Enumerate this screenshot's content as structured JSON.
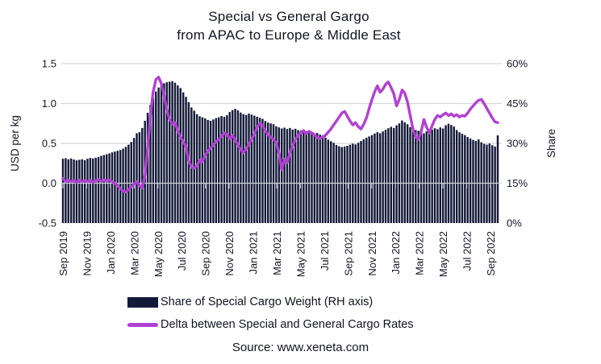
{
  "title": {
    "line1": "Special vs General Gargo",
    "line2": "from APAC to Europe & Middle East"
  },
  "axes": {
    "left": {
      "label": "USD per kg",
      "ticks": [
        "1.5",
        "1.0",
        "0.5",
        "0.0",
        "-0.5"
      ],
      "tick_values": [
        1.5,
        1.0,
        0.5,
        0.0,
        -0.5
      ]
    },
    "right": {
      "label": "Share",
      "ticks": [
        "60%",
        "45%",
        "30%",
        "15%",
        "0%"
      ],
      "tick_values": [
        60,
        45,
        30,
        15,
        0
      ]
    },
    "x": {
      "tick_labels": [
        "Sep 2019",
        "Nov 2019",
        "Jan 2020",
        "Mar 2020",
        "May 2020",
        "Jul 2020",
        "Sep 2020",
        "Nov 2020",
        "Jan 2021",
        "Mar 2021",
        "May 2021",
        "Jul 2021",
        "Sep 2021",
        "Nov 2021",
        "Jan 2022",
        "Mar 2022",
        "May 2022",
        "Jul 2022",
        "Sep 2022"
      ]
    }
  },
  "legend": [
    {
      "label": "Share of Special Cargo Weight (RH axis)",
      "type": "bar",
      "color": "#131a39"
    },
    {
      "label": "Delta between Special and General Cargo Rates",
      "type": "line",
      "color": "#b240d4"
    }
  ],
  "source": "Source: www.xeneta.com",
  "colors": {
    "bar": "#131a39",
    "line": "#b240d4",
    "grid": "#d8d8d8",
    "zero_line": "#d0d3da",
    "text": "#14162a"
  },
  "chart_data": {
    "type": "bar+line",
    "title": "Special vs General Gargo from APAC to Europe & Middle East",
    "x_unit": "weekly observations, Sep 2019 - Sep 2022",
    "x_tick_labels": [
      "Sep 2019",
      "Nov 2019",
      "Jan 2020",
      "Mar 2020",
      "May 2020",
      "Jul 2020",
      "Sep 2020",
      "Nov 2020",
      "Jan 2021",
      "Mar 2021",
      "May 2021",
      "Jul 2021",
      "Sep 2021",
      "Nov 2021",
      "Jan 2022",
      "Mar 2022",
      "May 2022",
      "Jul 2022",
      "Sep 2022"
    ],
    "grid": true,
    "legend_position": "bottom",
    "series": [
      {
        "name": "Share of Special Cargo Weight (RH axis)",
        "type": "bar",
        "axis": "right",
        "unit": "%",
        "ylim": [
          0,
          60
        ],
        "color": "#131a39",
        "values": [
          24.2,
          24.4,
          24.0,
          24.3,
          23.9,
          23.6,
          23.8,
          24.0,
          23.7,
          24.2,
          24.5,
          24.3,
          24.6,
          24.9,
          25.3,
          25.6,
          25.9,
          26.2,
          26.6,
          26.9,
          27.2,
          27.5,
          28.0,
          28.7,
          29.5,
          30.5,
          32.0,
          33.8,
          34.2,
          35.8,
          38.5,
          41.5,
          44.5,
          47.0,
          49.5,
          51.0,
          52.0,
          52.6,
          53.0,
          53.2,
          53.4,
          52.8,
          51.8,
          50.8,
          49.2,
          47.5,
          45.5,
          43.5,
          42.3,
          41.0,
          40.2,
          39.8,
          39.4,
          38.8,
          38.5,
          39.0,
          39.5,
          39.8,
          40.3,
          40.0,
          40.6,
          41.8,
          42.5,
          43.0,
          42.4,
          41.6,
          41.0,
          40.7,
          41.2,
          40.8,
          40.4,
          40.0,
          39.6,
          39.2,
          38.4,
          37.8,
          37.5,
          37.2,
          36.4,
          36.0,
          35.6,
          35.9,
          35.4,
          35.8,
          35.2,
          35.5,
          35.0,
          34.8,
          34.4,
          34.6,
          34.2,
          34.0,
          33.6,
          33.9,
          33.3,
          33.0,
          32.2,
          31.4,
          30.8,
          30.2,
          29.4,
          28.9,
          28.6,
          28.8,
          29.1,
          29.5,
          29.9,
          29.6,
          30.2,
          30.9,
          31.5,
          32.1,
          32.6,
          33.1,
          33.7,
          34.2,
          33.8,
          34.5,
          35.1,
          35.7,
          36.2,
          35.8,
          36.8,
          37.5,
          38.6,
          37.9,
          37.2,
          36.1,
          35.4,
          35.0,
          34.7,
          34.3,
          33.8,
          34.5,
          34.0,
          35.2,
          35.7,
          35.3,
          36.0,
          35.6,
          36.8,
          37.4,
          36.9,
          36.3,
          35.0,
          34.2,
          33.6,
          33.1,
          32.4,
          31.8,
          31.3,
          30.9,
          31.5,
          30.4,
          29.8,
          29.5,
          29.9,
          29.3,
          28.8,
          33.0
        ]
      },
      {
        "name": "Delta between Special and General Cargo Rates",
        "type": "line",
        "axis": "left",
        "unit": "USD per kg",
        "ylim": [
          -0.5,
          1.5
        ],
        "color": "#b240d4",
        "values": [
          0.06,
          0.02,
          0.04,
          0.02,
          0.03,
          0.01,
          0.04,
          0.02,
          0.03,
          0.02,
          0.04,
          0.01,
          0.03,
          0.05,
          0.02,
          0.04,
          0.03,
          0.04,
          0.02,
          0.0,
          -0.03,
          -0.07,
          -0.1,
          -0.11,
          -0.08,
          -0.05,
          -0.01,
          0.02,
          -0.03,
          -0.06,
          0.1,
          0.45,
          0.85,
          1.15,
          1.3,
          1.33,
          1.25,
          1.1,
          0.92,
          0.8,
          0.74,
          0.76,
          0.66,
          0.58,
          0.52,
          0.46,
          0.28,
          0.2,
          0.19,
          0.22,
          0.29,
          0.27,
          0.35,
          0.4,
          0.44,
          0.48,
          0.52,
          0.55,
          0.59,
          0.63,
          0.61,
          0.56,
          0.6,
          0.54,
          0.48,
          0.42,
          0.38,
          0.43,
          0.49,
          0.55,
          0.62,
          0.7,
          0.75,
          0.73,
          0.66,
          0.61,
          0.58,
          0.55,
          0.51,
          0.38,
          0.17,
          0.3,
          0.26,
          0.38,
          0.47,
          0.55,
          0.6,
          0.63,
          0.66,
          0.62,
          0.65,
          0.63,
          0.61,
          0.57,
          0.56,
          0.58,
          0.6,
          0.64,
          0.68,
          0.73,
          0.78,
          0.83,
          0.88,
          0.9,
          0.84,
          0.78,
          0.73,
          0.76,
          0.71,
          0.68,
          0.74,
          0.82,
          0.94,
          1.05,
          1.15,
          1.22,
          1.14,
          1.18,
          1.24,
          1.27,
          1.2,
          1.12,
          0.97,
          1.05,
          1.17,
          1.13,
          1.02,
          0.85,
          0.68,
          0.58,
          0.55,
          0.65,
          0.8,
          0.7,
          0.63,
          0.72,
          0.8,
          0.85,
          0.83,
          0.86,
          0.88,
          0.85,
          0.87,
          0.84,
          0.86,
          0.83,
          0.85,
          0.84,
          0.88,
          0.93,
          0.97,
          1.01,
          1.04,
          1.05,
          1.0,
          0.94,
          0.88,
          0.82,
          0.77,
          0.76
        ]
      }
    ]
  }
}
